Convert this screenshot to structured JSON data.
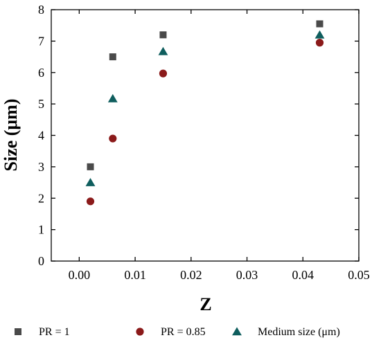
{
  "chart_data": {
    "type": "scatter",
    "title": "",
    "xlabel": "Z",
    "ylabel": "Size (μm)",
    "xlim": [
      -0.005,
      0.05
    ],
    "ylim": [
      0,
      8
    ],
    "xticks": [
      "0.00",
      "0.01",
      "0.02",
      "0.03",
      "0.04",
      "0.05"
    ],
    "yticks": [
      "0",
      "1",
      "2",
      "3",
      "4",
      "5",
      "6",
      "7",
      "8"
    ],
    "grid": false,
    "legend_position": "bottom",
    "series": [
      {
        "name": "PR = 1",
        "marker": "square",
        "color": "#4a4a4a",
        "x": [
          0.002,
          0.006,
          0.015,
          0.043
        ],
        "y": [
          3.0,
          6.5,
          7.2,
          7.55
        ]
      },
      {
        "name": "PR = 0.85",
        "marker": "circle",
        "color": "#8b1a1a",
        "x": [
          0.002,
          0.006,
          0.015,
          0.043
        ],
        "y": [
          1.9,
          3.9,
          5.97,
          6.95
        ]
      },
      {
        "name": "Medium size (μm)",
        "marker": "triangle",
        "color": "#0f5e5e",
        "x": [
          0.002,
          0.006,
          0.015,
          0.043
        ],
        "y": [
          2.5,
          5.17,
          6.67,
          7.2
        ]
      }
    ]
  }
}
